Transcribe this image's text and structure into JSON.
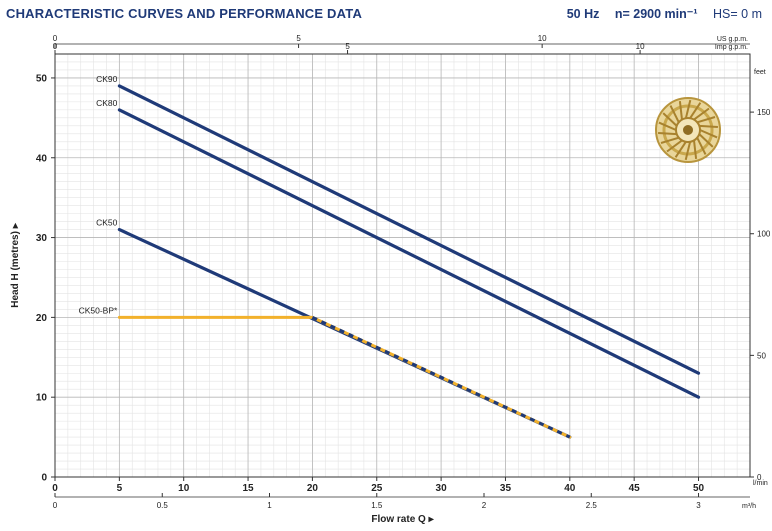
{
  "header": {
    "title": "CHARACTERISTIC CURVES AND PERFORMANCE DATA",
    "frequency": "50 Hz",
    "speed": "n= 2900 min⁻¹",
    "suction_head": "HS= 0 m"
  },
  "chart_data": {
    "type": "line",
    "xlabel": "Flow rate Q",
    "ylabel": "Head H (metres)",
    "x_unit": "l/min",
    "y2_unit": "feet",
    "x_ticks": [
      0,
      5,
      10,
      15,
      20,
      25,
      30,
      35,
      40,
      45,
      50
    ],
    "xlim": [
      0,
      54
    ],
    "y_ticks": [
      0,
      10,
      20,
      30,
      40,
      50
    ],
    "ylim": [
      0,
      53
    ],
    "grid": true,
    "secondary_axes": {
      "bottom_m3h": {
        "unit": "m³/h",
        "ticks": [
          0,
          0.5,
          1,
          1.5,
          2,
          2.5,
          3
        ]
      },
      "top_us_gpm": {
        "unit": "US g.p.m.",
        "ticks": [
          0,
          5,
          10
        ]
      },
      "top_imp_gpm": {
        "unit": "Imp g.p.m.",
        "ticks": [
          0,
          5,
          10
        ]
      },
      "right_feet": {
        "unit": "feet",
        "ticks": [
          0,
          50,
          100,
          150
        ]
      }
    },
    "series": [
      {
        "name": "CK90",
        "color": "#1f3a78",
        "x": [
          5,
          50
        ],
        "y": [
          49,
          13
        ]
      },
      {
        "name": "CK80",
        "color": "#1f3a78",
        "x": [
          5,
          50
        ],
        "y": [
          46,
          10
        ]
      },
      {
        "name": "CK50",
        "color": "#1f3a78",
        "x": [
          5,
          40
        ],
        "y": [
          31,
          5
        ]
      },
      {
        "name": "CK50-BP*",
        "color": "#f2b12b",
        "x": [
          5,
          20,
          40
        ],
        "y": [
          20,
          20,
          5
        ]
      }
    ]
  }
}
